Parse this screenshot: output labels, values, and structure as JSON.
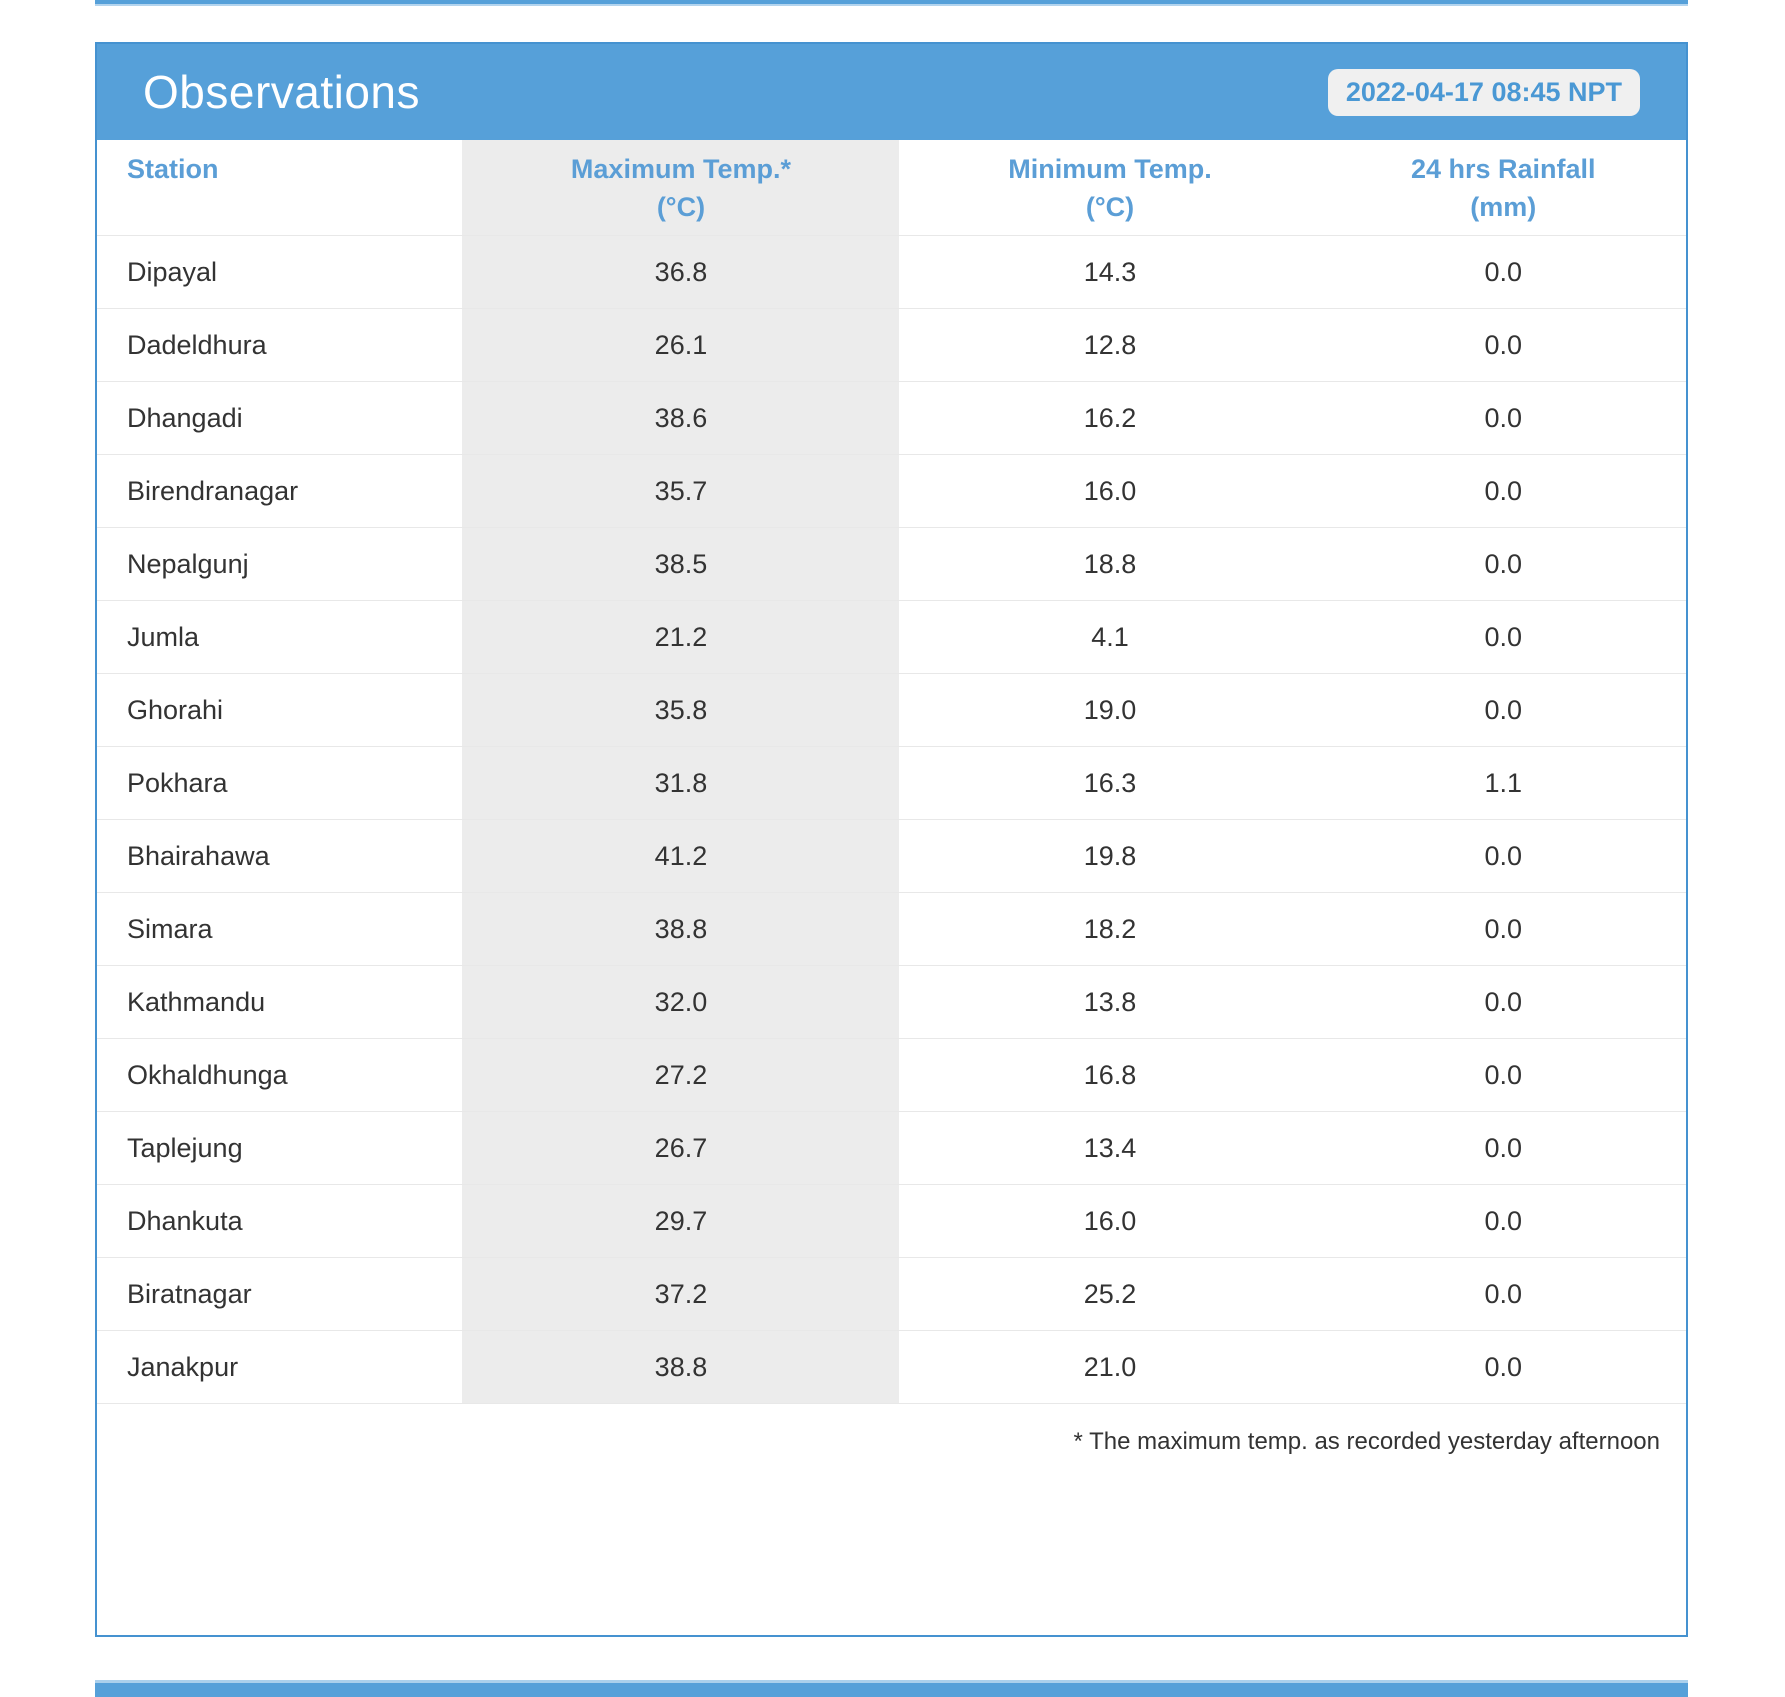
{
  "header": {
    "title": "Observations",
    "timestamp": "2022-04-17 08:45 NPT"
  },
  "table": {
    "columns": [
      {
        "label": "Station",
        "unit": ""
      },
      {
        "label": "Maximum Temp.*",
        "unit": "(°C)"
      },
      {
        "label": "Minimum Temp.",
        "unit": "(°C)"
      },
      {
        "label": "24 hrs Rainfall",
        "unit": "(mm)"
      }
    ],
    "rows": [
      {
        "station": "Dipayal",
        "max_temp": "36.8",
        "min_temp": "14.3",
        "rainfall": "0.0"
      },
      {
        "station": "Dadeldhura",
        "max_temp": "26.1",
        "min_temp": "12.8",
        "rainfall": "0.0"
      },
      {
        "station": "Dhangadi",
        "max_temp": "38.6",
        "min_temp": "16.2",
        "rainfall": "0.0"
      },
      {
        "station": "Birendranagar",
        "max_temp": "35.7",
        "min_temp": "16.0",
        "rainfall": "0.0"
      },
      {
        "station": "Nepalgunj",
        "max_temp": "38.5",
        "min_temp": "18.8",
        "rainfall": "0.0"
      },
      {
        "station": "Jumla",
        "max_temp": "21.2",
        "min_temp": "4.1",
        "rainfall": "0.0"
      },
      {
        "station": "Ghorahi",
        "max_temp": "35.8",
        "min_temp": "19.0",
        "rainfall": "0.0"
      },
      {
        "station": "Pokhara",
        "max_temp": "31.8",
        "min_temp": "16.3",
        "rainfall": "1.1"
      },
      {
        "station": "Bhairahawa",
        "max_temp": "41.2",
        "min_temp": "19.8",
        "rainfall": "0.0"
      },
      {
        "station": "Simara",
        "max_temp": "38.8",
        "min_temp": "18.2",
        "rainfall": "0.0"
      },
      {
        "station": "Kathmandu",
        "max_temp": "32.0",
        "min_temp": "13.8",
        "rainfall": "0.0"
      },
      {
        "station": "Okhaldhunga",
        "max_temp": "27.2",
        "min_temp": "16.8",
        "rainfall": "0.0"
      },
      {
        "station": "Taplejung",
        "max_temp": "26.7",
        "min_temp": "13.4",
        "rainfall": "0.0"
      },
      {
        "station": "Dhankuta",
        "max_temp": "29.7",
        "min_temp": "16.0",
        "rainfall": "0.0"
      },
      {
        "station": "Biratnagar",
        "max_temp": "37.2",
        "min_temp": "25.2",
        "rainfall": "0.0"
      },
      {
        "station": "Janakpur",
        "max_temp": "38.8",
        "min_temp": "21.0",
        "rainfall": "0.0"
      }
    ],
    "footnote": "* The maximum temp. as recorded yesterday afternoon"
  },
  "colors": {
    "accent_blue": "#56a0d9",
    "border_blue": "#4592d0",
    "header_text_blue": "#5b9ed6",
    "badge_text_blue": "#4a98d4",
    "max_temp_column_bg": "#ececec",
    "row_divider": "#e8e8e8",
    "body_text": "#333333"
  }
}
